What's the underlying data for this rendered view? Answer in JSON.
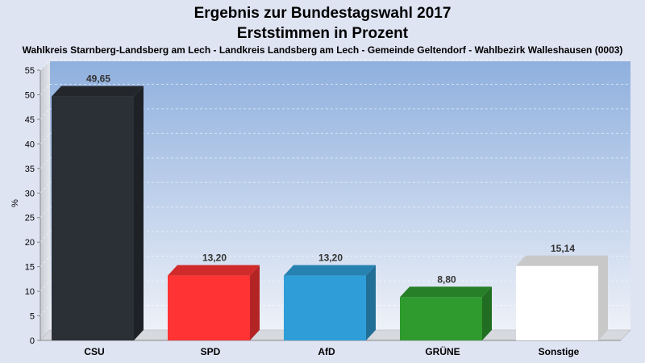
{
  "chart_data": {
    "type": "bar",
    "title": "Ergebnis zur Bundestagswahl 2017",
    "title2": "Erststimmen in Prozent",
    "subtitle": "Wahlkreis Starnberg-Landsberg am Lech - Landkreis Landsberg am Lech - Gemeinde Geltendorf - Wahlbezirk Walleshausen (0003)",
    "ylabel": "%",
    "ylim": [
      0,
      55
    ],
    "yticks": [
      0,
      5,
      10,
      15,
      20,
      25,
      30,
      35,
      40,
      45,
      50,
      55
    ],
    "categories": [
      "CSU",
      "SPD",
      "AfD",
      "GRÜNE",
      "Sonstige"
    ],
    "values": [
      49.65,
      13.2,
      13.2,
      8.8,
      15.14
    ],
    "value_labels": [
      "49,65",
      "13,20",
      "13,20",
      "8,80",
      "15,14"
    ],
    "colors": [
      "#2b2f36",
      "#ff3333",
      "#2f9ed8",
      "#2f9b2f",
      "#ffffff"
    ],
    "grid": true,
    "legend": "none"
  }
}
